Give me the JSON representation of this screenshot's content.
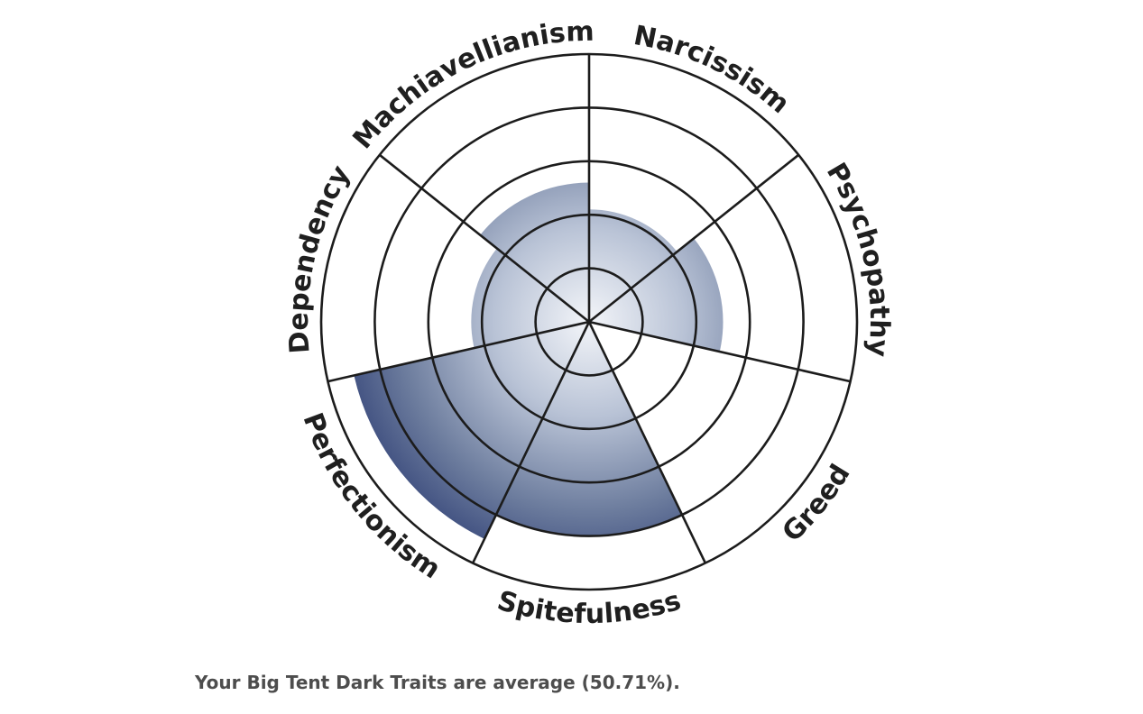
{
  "chart_data": {
    "type": "polar-area",
    "title": "",
    "categories": [
      "Narcissism",
      "Psychopathy",
      "Greed",
      "Spitefulness",
      "Perfectionism",
      "Dependency",
      "Machiavellianism"
    ],
    "values": [
      2.1,
      2.5,
      0,
      4,
      4.5,
      2.2,
      2.6
    ],
    "rmax": 5,
    "rings": [
      1,
      2,
      3,
      4,
      5
    ],
    "grid": true,
    "colors": {
      "fill_center": "#f3f5f9",
      "fill_edge": "#2f3f75",
      "grid_line": "#1c1c1c"
    }
  },
  "summary_text": "Your Big Tent Dark Traits are average (50.71%)."
}
